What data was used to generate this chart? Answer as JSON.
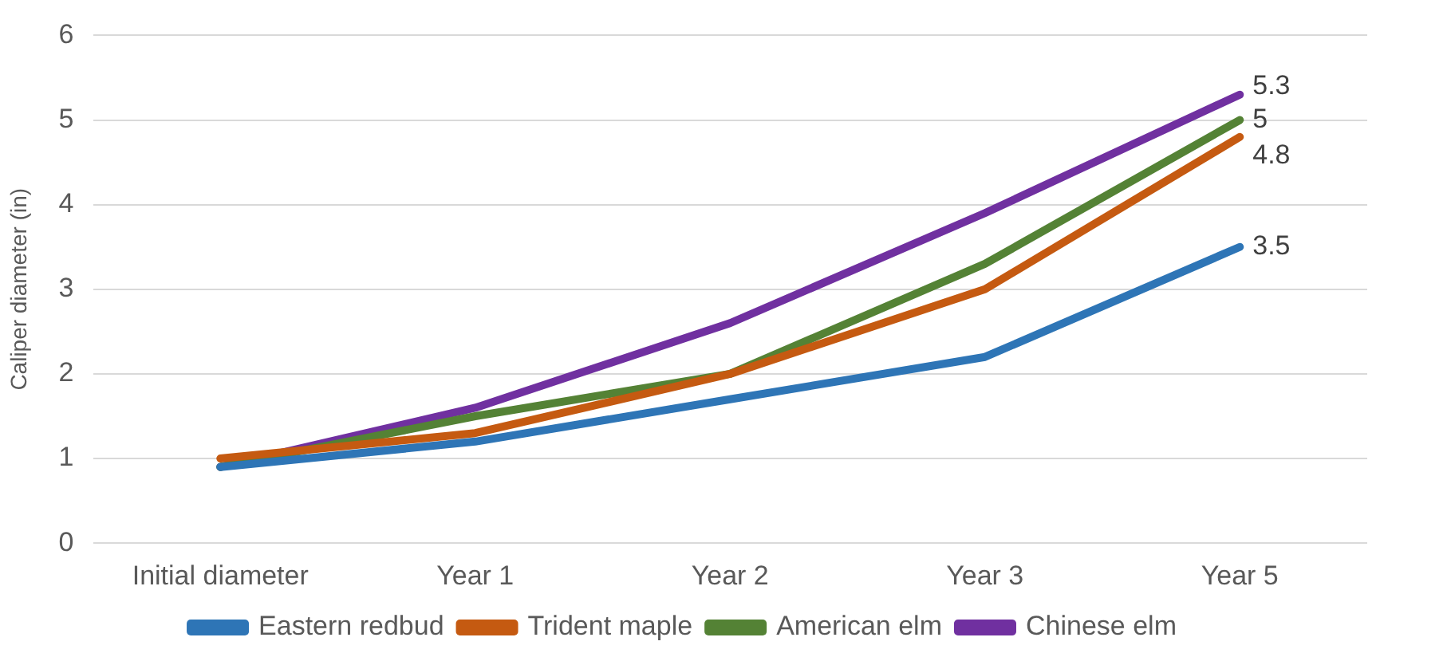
{
  "chart_data": {
    "type": "line",
    "ylabel": "Caliper diameter (in)",
    "categories": [
      "Initial diameter",
      "Year 1",
      "Year 2",
      "Year 3",
      "Year 5"
    ],
    "series": [
      {
        "name": "Eastern redbud",
        "color": "#2e75b6",
        "values": [
          0.9,
          1.2,
          1.7,
          2.2,
          3.5
        ],
        "value_labels": [
          null,
          null,
          null,
          null,
          "3.5"
        ]
      },
      {
        "name": "Trident maple",
        "color": "#c55a11",
        "values": [
          1.0,
          1.3,
          2.0,
          3.0,
          4.8
        ],
        "value_labels": [
          null,
          null,
          null,
          null,
          "4.8"
        ]
      },
      {
        "name": "American elm",
        "color": "#548235",
        "values": [
          0.9,
          1.5,
          2.0,
          3.3,
          5.0
        ],
        "value_labels": [
          null,
          null,
          null,
          null,
          "5"
        ]
      },
      {
        "name": "Chinese elm",
        "color": "#7030a0",
        "values": [
          0.9,
          1.6,
          2.6,
          3.9,
          5.3
        ],
        "value_labels": [
          null,
          null,
          null,
          null,
          "5.3"
        ]
      }
    ],
    "ylim": [
      0,
      6
    ],
    "yticks": [
      0,
      1,
      2,
      3,
      4,
      5,
      6
    ],
    "grid": "y",
    "legend": "bottom",
    "marker": "none",
    "line_style": "solid"
  }
}
